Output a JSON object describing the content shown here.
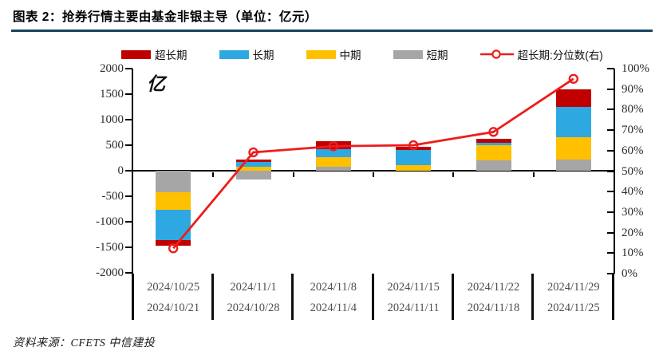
{
  "figure": {
    "title": "图表 2：抢券行情主要由基金非银主导（单位：亿元）",
    "source": "资料来源：CFETS 中信建投",
    "unit_label": "亿"
  },
  "colors": {
    "ultra_long": "#C00000",
    "long": "#2EA8E1",
    "mid": "#FFC000",
    "short": "#A6A6A6",
    "line": "#EE1C1C",
    "title_rule": "#17455E",
    "axis": "#000000",
    "axis_text": "#2b2b2b",
    "date_text": "#4d4d4d"
  },
  "legend": [
    {
      "label": "超长期",
      "type": "swatch",
      "color_key": "ultra_long"
    },
    {
      "label": "长期",
      "type": "swatch",
      "color_key": "long"
    },
    {
      "label": "中期",
      "type": "swatch",
      "color_key": "mid"
    },
    {
      "label": "短期",
      "type": "swatch",
      "color_key": "short"
    },
    {
      "label": "超长期:分位数(右)",
      "type": "line",
      "color_key": "line"
    }
  ],
  "chart_data": {
    "type": "bar",
    "subtype": "stacked-bar-with-line",
    "title": "抢券行情主要由基金非银主导（单位：亿元）",
    "categories_top": [
      "2024/10/25",
      "2024/11/1",
      "2024/11/8",
      "2024/11/15",
      "2024/11/22",
      "2024/11/29"
    ],
    "categories_bottom": [
      "2024/10/21",
      "2024/10/28",
      "2024/11/4",
      "2024/11/11",
      "2024/11/18",
      "2024/11/25"
    ],
    "series": [
      {
        "name": "超长期",
        "color_key": "ultra_long",
        "values": [
          -115,
          47,
          155,
          67,
          72,
          340
        ]
      },
      {
        "name": "长期",
        "color_key": "long",
        "values": [
          -590,
          94,
          155,
          286,
          42,
          600
        ]
      },
      {
        "name": "中期",
        "color_key": "mid",
        "values": [
          -350,
          73,
          183,
          116,
          302,
          442
        ]
      },
      {
        "name": "短期",
        "color_key": "short",
        "values": [
          -420,
          -172,
          78,
          0,
          203,
          214
        ]
      }
    ],
    "stack_order_from_zero": [
      "短期",
      "中期",
      "长期",
      "超长期"
    ],
    "line_series": {
      "name": "超长期:分位数(右)",
      "color_key": "line",
      "axis": "right",
      "values_pct": [
        12,
        59,
        62,
        62.5,
        69,
        95
      ]
    },
    "left_axis": {
      "label": "亿",
      "min": -2000,
      "max": 2000,
      "step": 500,
      "ticks": [
        "2000",
        "1500",
        "1000",
        "500",
        "0",
        "-500",
        "-1000",
        "-1500",
        "-2000"
      ]
    },
    "right_axis": {
      "min": 0,
      "max": 100,
      "step": 10,
      "ticks": [
        "100%",
        "90%",
        "80%",
        "70%",
        "60%",
        "50%",
        "40%",
        "30%",
        "20%",
        "10%",
        "0%"
      ]
    },
    "grid": false,
    "legend_position": "top"
  }
}
